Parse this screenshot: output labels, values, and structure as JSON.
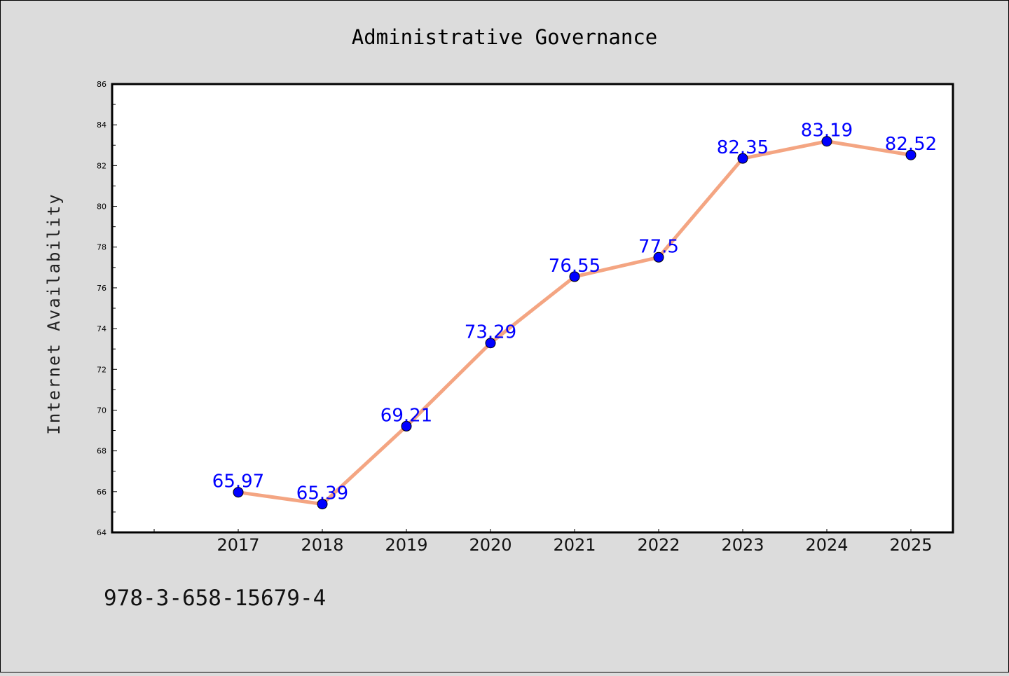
{
  "footer_text": "978-3-658-15679-4",
  "chart_data": {
    "type": "line",
    "title": "Administrative Governance",
    "ylabel": "Internet Availability",
    "xlabel": "",
    "x": [
      "2017",
      "2018",
      "2019",
      "2020",
      "2021",
      "2022",
      "2023",
      "2024",
      "2025"
    ],
    "series": [
      {
        "values": [
          65.97,
          65.39,
          69.21,
          73.29,
          76.55,
          77.5,
          82.35,
          83.19,
          82.52
        ],
        "labels": [
          "65.97",
          "65.39",
          "69.21",
          "73.29",
          "76.55",
          "77.5",
          "82.35",
          "83.19",
          "82.52"
        ],
        "line_color": "#f4a582",
        "marker_color": "#0000ff"
      }
    ],
    "ylim": [
      64,
      86
    ],
    "yticks": [
      "64",
      "66",
      "68",
      "70",
      "72",
      "74",
      "76",
      "78",
      "80",
      "82",
      "84",
      "86"
    ],
    "grid": false,
    "legend": false
  }
}
